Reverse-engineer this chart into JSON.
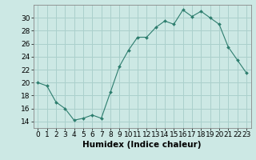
{
  "x": [
    0,
    1,
    2,
    3,
    4,
    5,
    6,
    7,
    8,
    9,
    10,
    11,
    12,
    13,
    14,
    15,
    16,
    17,
    18,
    19,
    20,
    21,
    22,
    23
  ],
  "y": [
    20,
    19.5,
    17,
    16,
    14.2,
    14.5,
    15,
    14.5,
    18.5,
    22.5,
    25,
    27,
    27,
    28.5,
    29.5,
    29,
    31.2,
    30.2,
    31,
    30,
    29,
    25.5,
    23.5,
    21.5
  ],
  "line_color": "#2d7d6e",
  "marker_color": "#2d7d6e",
  "bg_color": "#cce8e4",
  "grid_color": "#aad0cc",
  "xlabel": "Humidex (Indice chaleur)",
  "xlim": [
    -0.5,
    23.5
  ],
  "ylim": [
    13,
    32
  ],
  "yticks": [
    14,
    16,
    18,
    20,
    22,
    24,
    26,
    28,
    30
  ],
  "xticks": [
    0,
    1,
    2,
    3,
    4,
    5,
    6,
    7,
    8,
    9,
    10,
    11,
    12,
    13,
    14,
    15,
    16,
    17,
    18,
    19,
    20,
    21,
    22,
    23
  ],
  "tick_label_fontsize": 6.5,
  "xlabel_fontsize": 7.5
}
